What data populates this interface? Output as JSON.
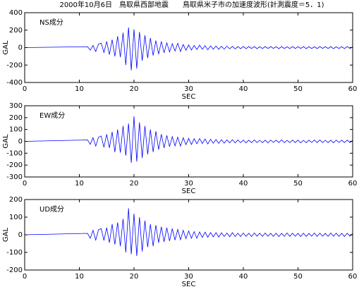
{
  "chart_data": [
    {
      "type": "line",
      "title": "2000年10月6日　鳥取県西部地震　　鳥取県米子市の加速度波形(計測震度＝5．1)",
      "annotation": "NS成分",
      "xlabel": "SEC",
      "ylabel": "GAL",
      "color": "#0000ff",
      "xlim": [
        0,
        60
      ],
      "xticks": [
        0,
        10,
        20,
        30,
        40,
        50,
        60
      ],
      "ylim": [
        -400,
        400
      ],
      "yticks": [
        -400,
        -200,
        0,
        200,
        400
      ],
      "x": [
        0,
        11.5,
        12,
        12.5,
        13,
        13.5,
        14,
        14.5,
        15,
        15.5,
        16,
        16.5,
        17,
        17.5,
        18,
        18.5,
        19,
        19.5,
        20,
        20.5,
        21,
        21.5,
        22,
        22.5,
        23,
        23.5,
        24,
        24.5,
        25,
        25.5,
        26,
        26.5,
        27,
        27.5,
        28,
        28.5,
        29,
        29.5,
        30,
        30.5,
        31,
        31.5,
        32,
        32.5,
        33,
        33.5,
        34,
        34.5,
        35,
        35.5,
        36,
        36.5,
        37,
        37.5,
        38,
        38.5,
        39,
        39.5,
        40,
        40.5,
        41,
        41.5,
        42,
        42.5,
        43,
        43.5,
        44,
        44.5,
        45,
        45.5,
        46,
        46.5,
        47,
        47.5,
        48,
        48.5,
        49,
        49.5,
        50,
        50.5,
        51,
        51.5,
        52,
        52.5,
        53,
        53.5,
        54,
        54.5,
        55,
        55.5,
        56,
        56.5,
        57,
        57.5,
        58,
        58.5,
        59,
        59.5,
        60
      ],
      "values": [
        0,
        10,
        -30,
        25,
        -45,
        40,
        50,
        -55,
        70,
        -80,
        90,
        -100,
        130,
        -110,
        170,
        -200,
        230,
        -260,
        210,
        -240,
        180,
        -150,
        140,
        -120,
        110,
        -90,
        80,
        -75,
        70,
        -60,
        55,
        -50,
        45,
        -40,
        50,
        -45,
        35,
        -30,
        30,
        -28,
        25,
        -22,
        28,
        -20,
        22,
        -25,
        20,
        -18,
        18,
        -20,
        15,
        -17,
        16,
        -14,
        14,
        -15,
        12,
        -13,
        13,
        -12,
        12,
        -10,
        11,
        -12,
        10,
        -11,
        12,
        -10,
        11,
        -9,
        10,
        -12,
        11,
        -10,
        9,
        -11,
        12,
        -10,
        10,
        -9,
        11,
        -12,
        10,
        -10,
        9,
        -11,
        12,
        -9,
        10,
        -10,
        11,
        -12,
        9,
        -10,
        10,
        -11,
        12,
        -9,
        8
      ]
    },
    {
      "type": "line",
      "annotation": "EW成分",
      "xlabel": "SEC",
      "ylabel": "GAL",
      "color": "#0000ff",
      "xlim": [
        0,
        60
      ],
      "xticks": [
        0,
        10,
        20,
        30,
        40,
        50,
        60
      ],
      "ylim": [
        -300,
        300
      ],
      "yticks": [
        -300,
        -200,
        -100,
        0,
        100,
        200,
        300
      ],
      "x": [
        0,
        11.5,
        12,
        12.5,
        13,
        13.5,
        14,
        14.5,
        15,
        15.5,
        16,
        16.5,
        17,
        17.5,
        18,
        18.5,
        19,
        19.5,
        20,
        20.5,
        21,
        21.5,
        22,
        22.5,
        23,
        23.5,
        24,
        24.5,
        25,
        25.5,
        26,
        26.5,
        27,
        27.5,
        28,
        28.5,
        29,
        29.5,
        30,
        30.5,
        31,
        31.5,
        32,
        32.5,
        33,
        33.5,
        34,
        34.5,
        35,
        35.5,
        36,
        36.5,
        37,
        37.5,
        38,
        38.5,
        39,
        39.5,
        40,
        40.5,
        41,
        41.5,
        42,
        42.5,
        43,
        43.5,
        44,
        44.5,
        45,
        45.5,
        46,
        46.5,
        47,
        47.5,
        48,
        48.5,
        49,
        49.5,
        50,
        50.5,
        51,
        51.5,
        52,
        52.5,
        53,
        53.5,
        54,
        54.5,
        55,
        55.5,
        56,
        56.5,
        57,
        57.5,
        58,
        58.5,
        59,
        59.5,
        60
      ],
      "values": [
        0,
        12,
        -25,
        30,
        -40,
        35,
        45,
        -50,
        60,
        -55,
        80,
        -90,
        100,
        -95,
        130,
        -120,
        150,
        -180,
        210,
        -170,
        160,
        -140,
        130,
        -110,
        100,
        -90,
        85,
        -70,
        60,
        -55,
        50,
        -45,
        40,
        -38,
        35,
        -40,
        30,
        -28,
        25,
        -26,
        22,
        -20,
        24,
        -18,
        20,
        -22,
        18,
        -16,
        15,
        -17,
        14,
        -15,
        13,
        -12,
        14,
        -13,
        12,
        -11,
        11,
        -12,
        10,
        -11,
        12,
        -10,
        9,
        -11,
        10,
        -12,
        11,
        -9,
        10,
        -10,
        12,
        -11,
        9,
        -10,
        11,
        -10,
        10,
        -12,
        9,
        -11,
        10,
        -9,
        11,
        -10,
        12,
        -10,
        9,
        -11,
        10,
        -12,
        11,
        -9,
        10,
        -10,
        11,
        -10,
        8
      ]
    },
    {
      "type": "line",
      "annotation": "UD成分",
      "xlabel": "SEC",
      "ylabel": "GAL",
      "color": "#0000ff",
      "xlim": [
        0,
        60
      ],
      "xticks": [
        0,
        10,
        20,
        30,
        40,
        50,
        60
      ],
      "ylim": [
        -200,
        200
      ],
      "yticks": [
        -200,
        -100,
        0,
        100,
        200
      ],
      "x": [
        0,
        11.5,
        12,
        12.5,
        13,
        13.5,
        14,
        14.5,
        15,
        15.5,
        16,
        16.5,
        17,
        17.5,
        18,
        18.5,
        19,
        19.5,
        20,
        20.5,
        21,
        21.5,
        22,
        22.5,
        23,
        23.5,
        24,
        24.5,
        25,
        25.5,
        26,
        26.5,
        27,
        27.5,
        28,
        28.5,
        29,
        29.5,
        30,
        30.5,
        31,
        31.5,
        32,
        32.5,
        33,
        33.5,
        34,
        34.5,
        35,
        35.5,
        36,
        36.5,
        37,
        37.5,
        38,
        38.5,
        39,
        39.5,
        40,
        40.5,
        41,
        41.5,
        42,
        42.5,
        43,
        43.5,
        44,
        44.5,
        45,
        45.5,
        46,
        46.5,
        47,
        47.5,
        48,
        48.5,
        49,
        49.5,
        50,
        50.5,
        51,
        51.5,
        52,
        52.5,
        53,
        53.5,
        54,
        54.5,
        55,
        55.5,
        56,
        56.5,
        57,
        57.5,
        58,
        58.5,
        59,
        59.5,
        60
      ],
      "values": [
        0,
        8,
        -20,
        25,
        -30,
        28,
        35,
        -32,
        40,
        -45,
        60,
        -55,
        70,
        -65,
        90,
        -100,
        150,
        -110,
        120,
        -120,
        100,
        -95,
        80,
        -70,
        60,
        -65,
        55,
        -45,
        45,
        -40,
        40,
        -35,
        35,
        -30,
        30,
        -28,
        25,
        -22,
        22,
        -20,
        18,
        -20,
        16,
        -15,
        15,
        -14,
        13,
        -12,
        12,
        -13,
        11,
        -10,
        10,
        -11,
        12,
        -10,
        9,
        -10,
        10,
        -9,
        9,
        -10,
        10,
        -8,
        9,
        -9,
        10,
        -8,
        8,
        -9,
        9,
        -10,
        8,
        -8,
        10,
        -9,
        9,
        -8,
        8,
        -10,
        9,
        -9,
        8,
        -8,
        10,
        -9,
        9,
        -8,
        8,
        -9,
        10,
        -8,
        9,
        -9,
        8,
        -10,
        9,
        -8,
        7
      ]
    }
  ]
}
